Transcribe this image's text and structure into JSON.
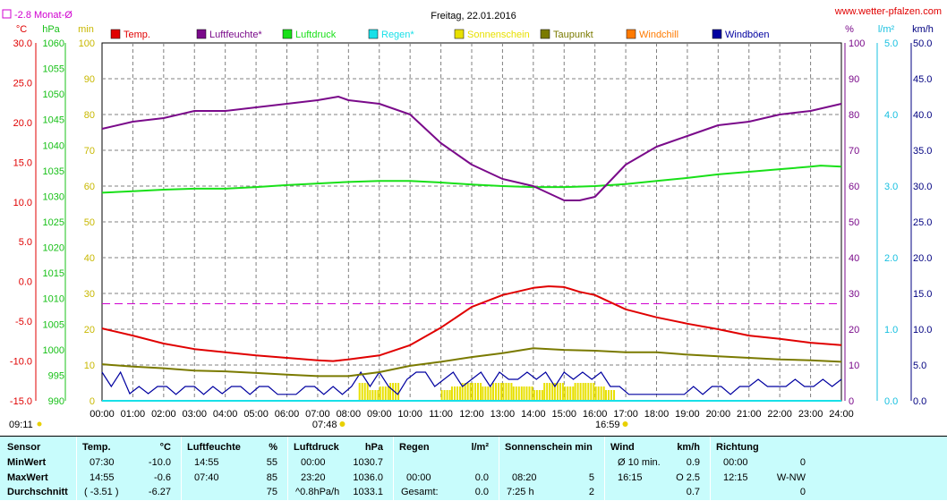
{
  "header": {
    "title": "Freitag, 22.01.2016",
    "url": "www.wetter-pfalzen.com",
    "month_avg_label": "-2.8 Monat-Ø"
  },
  "axis_units": {
    "temp": "°C",
    "pressure": "hPa",
    "minutes": "min",
    "percent": "%",
    "rain": "l/m²",
    "wind": "km/h"
  },
  "legend": [
    {
      "label": "Temp.",
      "color": "#e00000"
    },
    {
      "label": "Luftfeuchte*",
      "color": "#7a0a8a"
    },
    {
      "label": "Luftdruck",
      "color": "#18e018"
    },
    {
      "label": "Regen*",
      "color": "#18e0e8"
    },
    {
      "label": "Sonnenschein",
      "color": "#e8e000"
    },
    {
      "label": "Taupunkt",
      "color": "#7a7a00"
    },
    {
      "label": "Windchill",
      "color": "#ff7a00"
    },
    {
      "label": "Windböen",
      "color": "#0000a0"
    }
  ],
  "events": {
    "sunrise": "07:48",
    "sunset": "16:59",
    "now": "09:11"
  },
  "chart_data": {
    "type": "line",
    "x_labels": [
      "00:00",
      "01:00",
      "02:00",
      "03:00",
      "04:00",
      "05:00",
      "06:00",
      "07:00",
      "08:00",
      "09:00",
      "10:00",
      "11:00",
      "12:00",
      "13:00",
      "14:00",
      "15:00",
      "16:00",
      "17:00",
      "18:00",
      "19:00",
      "20:00",
      "21:00",
      "22:00",
      "23:00",
      "24:00"
    ],
    "xlim_hours": [
      0,
      24
    ],
    "grid": true,
    "axes": {
      "temp": {
        "range": [
          -15,
          30
        ],
        "ticks": [
          "30.0",
          "25.0",
          "20.0",
          "15.0",
          "10.0",
          "5.0",
          "0.0",
          "-5.0",
          "-10.0",
          "-15.0"
        ]
      },
      "pressure": {
        "range": [
          990,
          1060
        ],
        "ticks": [
          "1060",
          "1055",
          "1050",
          "1045",
          "1040",
          "1035",
          "1030",
          "1025",
          "1020",
          "1015",
          "1010",
          "1005",
          "1000",
          "995",
          "990"
        ]
      },
      "minutes": {
        "range": [
          0,
          100
        ],
        "ticks": [
          "100",
          "90",
          "80",
          "70",
          "60",
          "50",
          "40",
          "30",
          "20",
          "10",
          "0"
        ]
      },
      "percent": {
        "range": [
          0,
          100
        ],
        "ticks": [
          "100",
          "90",
          "80",
          "70",
          "60",
          "50",
          "40",
          "30",
          "20",
          "10",
          "0"
        ]
      },
      "rain": {
        "range": [
          0,
          5
        ],
        "ticks": [
          "5.0",
          "4.0",
          "3.0",
          "2.0",
          "1.0",
          "0.0"
        ]
      },
      "wind": {
        "range": [
          0,
          50
        ],
        "ticks": [
          "50.0",
          "45.0",
          "40.0",
          "35.0",
          "30.0",
          "25.0",
          "20.0",
          "15.0",
          "10.0",
          "5.0",
          "0.0"
        ]
      }
    },
    "month_avg_temp": -2.8,
    "series": [
      {
        "name": "Temp.",
        "axis": "temp",
        "x": [
          0,
          1,
          2,
          3,
          4,
          5,
          6,
          7,
          7.5,
          8,
          9,
          10,
          11,
          12,
          13,
          14,
          14.5,
          15,
          15.5,
          16,
          17,
          18,
          19,
          20,
          21,
          22,
          23,
          24
        ],
        "y": [
          -5.9,
          -6.8,
          -7.8,
          -8.5,
          -8.9,
          -9.3,
          -9.6,
          -9.9,
          -10.0,
          -9.8,
          -9.3,
          -8.0,
          -5.8,
          -3.2,
          -1.7,
          -0.8,
          -0.6,
          -0.7,
          -1.3,
          -1.7,
          -3.5,
          -4.5,
          -5.3,
          -6.0,
          -6.8,
          -7.2,
          -7.7,
          -8.0
        ]
      },
      {
        "name": "Luftfeuchte*",
        "axis": "percent",
        "x": [
          0,
          1,
          2,
          3,
          4,
          5,
          6,
          7,
          7.67,
          8,
          9,
          10,
          11,
          12,
          13,
          14,
          14.5,
          15,
          15.5,
          16,
          17,
          18,
          19,
          20,
          21,
          22,
          23,
          24
        ],
        "y": [
          76,
          78,
          79,
          81,
          81,
          82,
          83,
          84,
          85,
          84,
          83,
          80,
          72,
          66,
          62,
          60,
          58,
          56,
          56,
          57,
          66,
          71,
          74,
          77,
          78,
          80,
          81,
          83
        ]
      },
      {
        "name": "Luftdruck",
        "axis": "pressure",
        "x": [
          0,
          1,
          2,
          3,
          4,
          5,
          6,
          7,
          8,
          9,
          10,
          11,
          12,
          13,
          14,
          15,
          16,
          17,
          18,
          19,
          20,
          21,
          22,
          23,
          23.33,
          24
        ],
        "y": [
          1030.7,
          1031.0,
          1031.3,
          1031.5,
          1031.5,
          1031.8,
          1032.2,
          1032.5,
          1032.8,
          1033.0,
          1033.0,
          1032.7,
          1032.3,
          1032.0,
          1031.8,
          1031.8,
          1032.0,
          1032.4,
          1033.0,
          1033.6,
          1034.3,
          1034.8,
          1035.3,
          1035.8,
          1036.0,
          1035.8
        ]
      },
      {
        "name": "Taupunkt",
        "axis": "temp",
        "x": [
          0,
          1,
          2,
          3,
          4,
          5,
          6,
          7,
          8,
          9,
          10,
          11,
          12,
          13,
          14,
          15,
          16,
          17,
          18,
          19,
          20,
          21,
          22,
          23,
          24
        ],
        "y": [
          -10.4,
          -10.7,
          -10.9,
          -11.2,
          -11.3,
          -11.5,
          -11.7,
          -11.9,
          -11.9,
          -11.4,
          -10.6,
          -10.1,
          -9.5,
          -9.0,
          -8.4,
          -8.6,
          -8.7,
          -8.9,
          -8.9,
          -9.2,
          -9.4,
          -9.6,
          -9.8,
          -9.9,
          -10.1
        ]
      },
      {
        "name": "Windböen",
        "axis": "wind",
        "x": [
          0,
          0.3,
          0.6,
          0.9,
          1.2,
          1.5,
          1.8,
          2.1,
          2.4,
          2.7,
          3.0,
          3.3,
          3.6,
          3.9,
          4.2,
          4.5,
          4.8,
          5.1,
          5.4,
          5.7,
          6.0,
          6.3,
          6.6,
          6.9,
          7.2,
          7.5,
          7.8,
          8.1,
          8.4,
          8.7,
          9.0,
          9.3,
          9.6,
          9.9,
          10.2,
          10.5,
          10.8,
          11.1,
          11.4,
          11.7,
          12.0,
          12.3,
          12.6,
          12.9,
          13.2,
          13.5,
          13.8,
          14.1,
          14.4,
          14.7,
          15.0,
          15.3,
          15.6,
          15.9,
          16.2,
          16.5,
          16.8,
          17.1,
          17.4,
          17.7,
          18.0,
          18.3,
          18.6,
          18.9,
          19.2,
          19.5,
          19.8,
          20.1,
          20.4,
          20.7,
          21.0,
          21.3,
          21.6,
          21.9,
          22.2,
          22.5,
          22.8,
          23.1,
          23.4,
          23.7,
          24.0
        ],
        "y": [
          4,
          2,
          4,
          1,
          2,
          1,
          2,
          2,
          0.9,
          2,
          2,
          0.9,
          2,
          1,
          2,
          2,
          0.9,
          2,
          2,
          0.9,
          0.9,
          0.9,
          2,
          2,
          0.9,
          2,
          0.9,
          2,
          4,
          2,
          4,
          2,
          0.9,
          3,
          4,
          4,
          2,
          3,
          4,
          2,
          3,
          4,
          2,
          4,
          3,
          3,
          4,
          3,
          4,
          2,
          4,
          3,
          4,
          3,
          4,
          2,
          2,
          0.9,
          0.9,
          0.9,
          0.9,
          0.9,
          0.9,
          0.9,
          2,
          0.9,
          2,
          2,
          0.9,
          2,
          2,
          3,
          2,
          2,
          2,
          3,
          2,
          2,
          3,
          2,
          3
        ]
      },
      {
        "name": "Sonnenschein",
        "axis": "minutes",
        "x": [
          8.33,
          8.67,
          9.0,
          9.33,
          9.67,
          10.0,
          10.33,
          10.67,
          11.0,
          11.33,
          11.67,
          12.0,
          12.33,
          12.67,
          13.0,
          13.33,
          13.67,
          14.0,
          14.33,
          14.67,
          15.0,
          15.33,
          15.67,
          16.0,
          16.33
        ],
        "y": [
          5,
          3,
          4,
          5,
          0,
          0,
          0,
          0,
          3,
          4,
          5,
          5,
          4,
          5,
          5,
          4,
          4,
          3,
          5,
          5,
          4,
          5,
          5,
          4,
          3
        ]
      },
      {
        "name": "Regen*",
        "axis": "rain",
        "x": [
          0,
          24
        ],
        "y": [
          0,
          0
        ]
      }
    ]
  },
  "summary": {
    "row_labels": [
      "Sensor",
      "MinWert",
      "MaxWert",
      "Durchschnitt"
    ],
    "columns": [
      {
        "name": "Temp.",
        "unit": "°C",
        "min_time": "07:30",
        "min": "-10.0",
        "max_time": "14:55",
        "max": "-0.6",
        "avg_note": "( -3.51 )",
        "avg": "-6.27"
      },
      {
        "name": "Luftfeuchte",
        "unit": "%",
        "min_time": "14:55",
        "min": "55",
        "max_time": "07:40",
        "max": "85",
        "avg_note": "",
        "avg": "75"
      },
      {
        "name": "Luftdruck",
        "unit": "hPa",
        "min_time": "00:00",
        "min": "1030.7",
        "max_time": "23:20",
        "max": "1036.0",
        "avg_note": "^0.8hPa/h",
        "avg": "1033.1"
      },
      {
        "name": "Regen",
        "unit": "l/m²",
        "min_time": "",
        "min": "",
        "max_time": "00:00",
        "max": "0.0",
        "avg_note": "Gesamt:",
        "avg": "0.0"
      },
      {
        "name": "Sonnenschein min",
        "unit": "",
        "min_time": "",
        "min": "",
        "max_time": "08:20",
        "max": "5",
        "avg_note": "7:25 h",
        "avg": "2"
      },
      {
        "name": "Wind",
        "unit": "km/h",
        "min_time": "Ø 10 min.",
        "min": "0.9",
        "max_time": "16:15",
        "max": "O 2.5",
        "avg_note": "",
        "avg": "0.7"
      },
      {
        "name": "Richtung",
        "unit": "",
        "min_time": "00:00",
        "min": "0",
        "max_time": "12:15",
        "max": "W-NW",
        "avg_note": "",
        "avg": "0"
      }
    ]
  }
}
